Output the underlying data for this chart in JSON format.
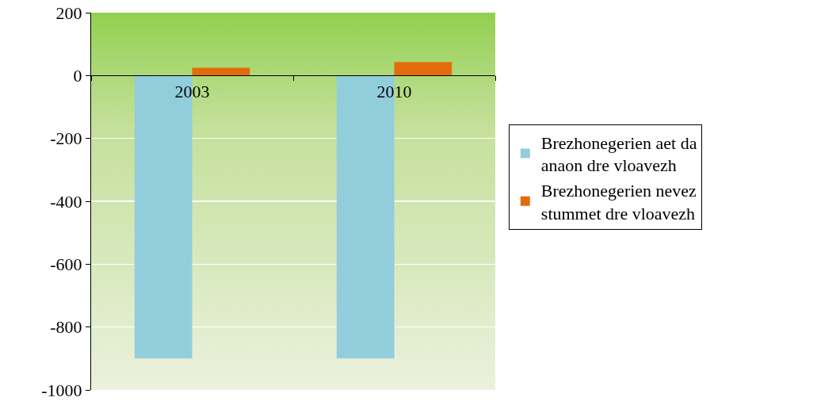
{
  "chart_data": {
    "type": "bar",
    "categories": [
      "2003",
      "2010"
    ],
    "series": [
      {
        "name": "Brezhonegerien aet da anaon dre vloavezh",
        "color": "#92cddc",
        "values": [
          -900,
          -900
        ]
      },
      {
        "name": "Brezhonegerien nevez stummet dre vloavezh",
        "color": "#e36c0a",
        "values": [
          25,
          43
        ]
      }
    ],
    "ylim": [
      -1000,
      200
    ],
    "yticks": [
      -1000,
      -800,
      -600,
      -400,
      -200,
      0,
      200
    ],
    "grid": "y",
    "legend": "right"
  }
}
